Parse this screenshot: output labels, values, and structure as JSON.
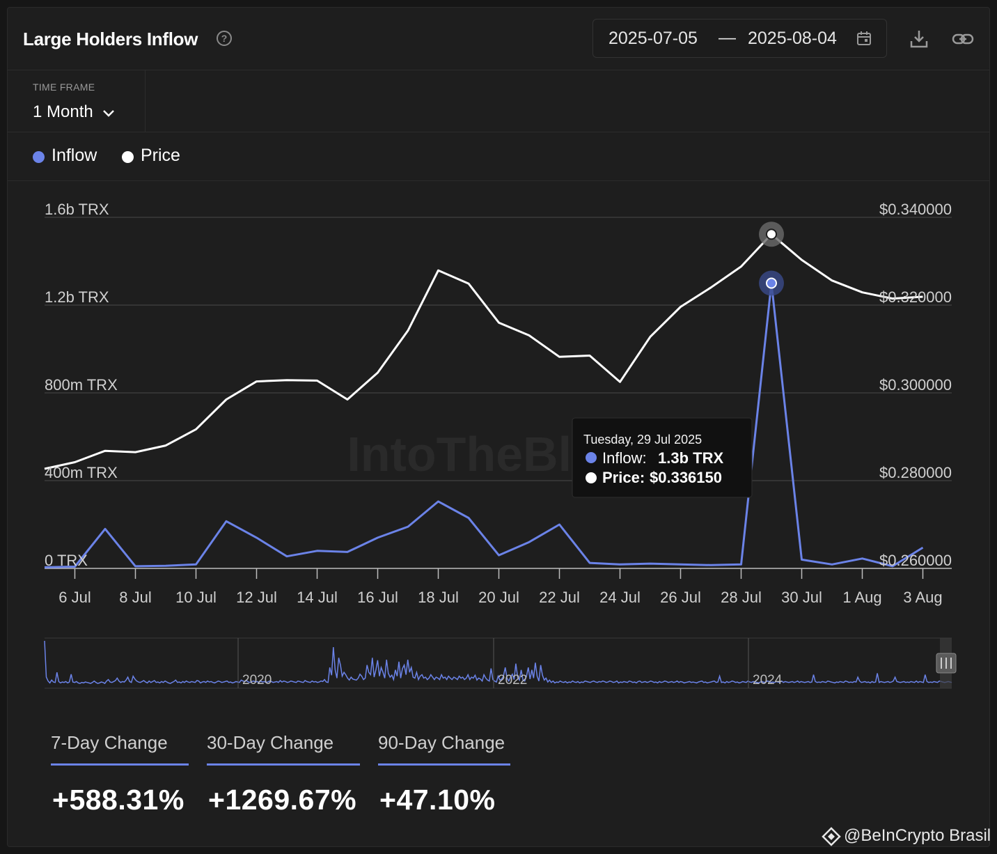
{
  "header": {
    "title": "Large Holders Inflow",
    "help_icon": "?",
    "date_start": "2025-07-05",
    "date_separator": "—",
    "date_end": "2025-08-04",
    "calendar_icon": "calendar-icon",
    "download_icon": "download-icon",
    "link_icon": "link-icon"
  },
  "timeframe": {
    "label": "TIME FRAME",
    "value": "1 Month"
  },
  "legend": [
    {
      "label": "Inflow",
      "color": "#6b83e8"
    },
    {
      "label": "Price",
      "color": "#ffffff"
    }
  ],
  "watermark": "IntoTheBlock",
  "tooltip": {
    "date": "Tuesday, 29 Jul 2025",
    "inflow_label": "Inflow:",
    "inflow_value": "1.3b TRX",
    "price_label": "Price:",
    "price_value": "$0.336150"
  },
  "chart_data": [
    {
      "type": "line",
      "x_tick_labels": [
        "6 Jul",
        "8 Jul",
        "10 Jul",
        "12 Jul",
        "14 Jul",
        "16 Jul",
        "18 Jul",
        "20 Jul",
        "22 Jul",
        "24 Jul",
        "26 Jul",
        "28 Jul",
        "30 Jul",
        "1 Aug",
        "3 Aug"
      ],
      "x": [
        "2025-07-05",
        "2025-07-06",
        "2025-07-07",
        "2025-07-08",
        "2025-07-09",
        "2025-07-10",
        "2025-07-11",
        "2025-07-12",
        "2025-07-13",
        "2025-07-14",
        "2025-07-15",
        "2025-07-16",
        "2025-07-17",
        "2025-07-18",
        "2025-07-19",
        "2025-07-20",
        "2025-07-21",
        "2025-07-22",
        "2025-07-23",
        "2025-07-24",
        "2025-07-25",
        "2025-07-26",
        "2025-07-27",
        "2025-07-28",
        "2025-07-29",
        "2025-07-30",
        "2025-07-31",
        "2025-08-01",
        "2025-08-02",
        "2025-08-03"
      ],
      "y_left_ticks": [
        "0 TRX",
        "400m TRX",
        "800m TRX",
        "1.2b TRX",
        "1.6b TRX"
      ],
      "y_left_range": [
        0,
        1600000000
      ],
      "y_right_ticks": [
        "$0.260000",
        "$0.280000",
        "$0.300000",
        "$0.320000",
        "$0.340000"
      ],
      "y_right_range": [
        0.26,
        0.34
      ],
      "grid": true,
      "series": [
        {
          "name": "Inflow",
          "axis": "left",
          "color": "#6b83e8",
          "values": [
            5000000,
            8000000,
            180000000,
            10000000,
            12000000,
            18000000,
            215000000,
            140000000,
            55000000,
            80000000,
            75000000,
            140000000,
            190000000,
            305000000,
            230000000,
            60000000,
            120000000,
            200000000,
            25000000,
            18000000,
            22000000,
            18000000,
            15000000,
            18000000,
            1300000000,
            40000000,
            18000000,
            45000000,
            10000000,
            95000000
          ]
        },
        {
          "name": "Price",
          "axis": "right",
          "color": "#ffffff",
          "values": [
            0.2827,
            0.2842,
            0.2868,
            0.2865,
            0.288,
            0.2917,
            0.2985,
            0.3026,
            0.3029,
            0.3028,
            0.2985,
            0.3046,
            0.3142,
            0.3279,
            0.3249,
            0.316,
            0.3131,
            0.3082,
            0.3085,
            0.3025,
            0.3128,
            0.3196,
            0.324,
            0.3288,
            0.33615,
            0.3303,
            0.3256,
            0.3229,
            0.3215,
            0.3219
          ]
        }
      ]
    },
    {
      "type": "line",
      "x_tick_labels": [
        "2020",
        "2022",
        "2024"
      ],
      "series": [
        {
          "name": "Inflow",
          "color": "#6b83e8",
          "values": [
            95,
            20,
            12,
            8,
            14,
            10,
            9,
            30,
            11,
            8,
            10,
            9,
            11,
            8,
            10,
            26,
            10,
            9,
            11,
            8,
            7,
            9,
            8,
            10,
            9,
            8,
            7,
            9,
            12,
            9,
            7,
            8,
            10,
            9,
            7,
            12,
            15,
            10,
            9,
            11,
            13,
            18,
            12,
            9,
            11,
            10,
            14,
            20,
            11,
            9,
            22,
            16,
            12,
            10,
            9,
            11,
            13,
            10,
            8,
            12,
            9,
            11,
            13,
            9,
            10,
            8,
            11,
            9,
            12,
            10,
            8,
            7,
            9,
            11,
            14,
            9,
            10,
            8,
            11,
            9,
            12,
            10,
            9,
            11,
            10,
            9,
            13,
            12,
            8,
            10,
            11,
            9,
            12,
            10,
            11,
            9,
            8,
            10,
            12,
            11,
            9,
            10,
            11,
            12,
            9,
            10,
            8,
            9,
            11,
            10,
            9,
            14,
            12,
            11,
            13,
            10,
            9,
            11,
            12,
            10,
            11,
            9,
            12,
            10,
            11,
            9,
            10,
            12,
            11,
            9,
            10,
            11,
            9,
            13,
            10,
            12,
            11,
            9,
            10,
            12,
            11,
            10,
            9,
            12,
            11,
            10,
            9,
            13,
            11,
            10,
            9,
            12,
            10,
            11,
            9,
            10,
            12,
            11,
            15,
            10,
            9,
            40,
            24,
            82,
            35,
            18,
            60,
            45,
            22,
            30,
            25,
            18,
            14,
            20,
            16,
            15,
            14,
            18,
            26,
            22,
            15,
            18,
            45,
            30,
            25,
            60,
            20,
            35,
            55,
            22,
            40,
            30,
            18,
            56,
            28,
            20,
            24,
            15,
            35,
            22,
            52,
            18,
            38,
            45,
            25,
            56,
            30,
            40,
            20,
            18,
            30,
            15,
            22,
            25,
            18,
            20,
            15,
            18,
            25,
            20,
            15,
            20,
            18,
            15,
            25,
            18,
            20,
            15,
            22,
            18,
            15,
            20,
            18,
            15,
            22,
            18,
            20,
            15,
            18,
            25,
            15,
            20,
            18,
            24,
            14,
            18,
            16,
            12,
            25,
            18,
            14,
            12,
            38,
            15,
            12,
            10,
            22,
            14,
            16,
            22,
            40,
            18,
            12,
            20,
            26,
            15,
            48,
            20,
            14,
            35,
            14,
            12,
            22,
            40,
            16,
            35,
            18,
            50,
            22,
            12,
            45,
            24,
            14,
            18,
            10,
            14,
            9,
            12,
            8,
            10,
            9,
            12,
            10,
            9,
            11,
            8,
            10,
            9,
            12,
            10,
            9,
            11,
            8,
            10,
            9,
            12,
            11,
            10,
            9,
            11,
            12,
            10,
            9,
            11,
            10,
            12,
            11,
            9,
            10,
            12,
            11,
            9,
            10,
            12,
            8,
            10,
            9,
            11,
            10,
            9,
            12,
            11,
            9,
            10,
            8,
            11,
            12,
            9,
            10,
            11,
            9,
            10,
            12,
            11,
            9,
            10,
            8,
            11,
            9,
            10,
            12,
            11,
            9,
            10,
            11,
            9,
            10,
            12,
            9,
            11,
            10,
            8,
            9,
            10,
            11,
            9,
            10,
            9,
            8,
            10,
            11,
            12,
            9,
            10,
            8,
            9,
            10,
            11,
            12,
            9,
            10,
            22,
            9,
            10,
            8,
            11,
            9,
            10,
            12,
            11,
            9,
            10,
            8,
            9,
            11,
            10,
            9,
            12,
            10,
            9,
            11,
            10,
            9,
            8,
            10,
            11,
            9,
            10,
            12,
            11,
            9,
            10,
            9,
            11,
            10,
            9,
            12,
            9,
            11,
            10,
            9,
            10,
            11,
            9,
            10,
            12,
            9,
            11,
            10,
            9,
            10,
            11,
            9,
            10,
            25,
            11,
            9,
            10,
            9,
            11,
            10,
            9,
            12,
            11,
            10,
            9,
            8,
            10,
            9,
            11,
            10,
            9,
            12,
            11,
            9,
            10,
            9,
            11,
            10,
            20,
            12,
            9,
            10,
            11,
            9,
            10,
            8,
            11,
            9,
            10,
            28,
            9,
            11,
            10,
            9,
            10,
            11,
            9,
            10,
            12,
            20,
            11,
            10,
            9,
            10,
            11,
            9,
            10,
            9,
            11,
            10,
            9,
            12,
            9,
            11,
            10,
            9,
            25,
            11,
            9,
            10,
            9,
            11,
            10,
            9,
            12,
            11,
            10,
            9,
            10,
            11,
            10,
            9
          ]
        }
      ]
    }
  ],
  "changes": [
    {
      "label": "7-Day Change",
      "value": "+588.31%"
    },
    {
      "label": "30-Day Change",
      "value": "+1269.67%"
    },
    {
      "label": "90-Day Change",
      "value": "+47.10%"
    }
  ],
  "credit": "@BeInCrypto Brasil"
}
